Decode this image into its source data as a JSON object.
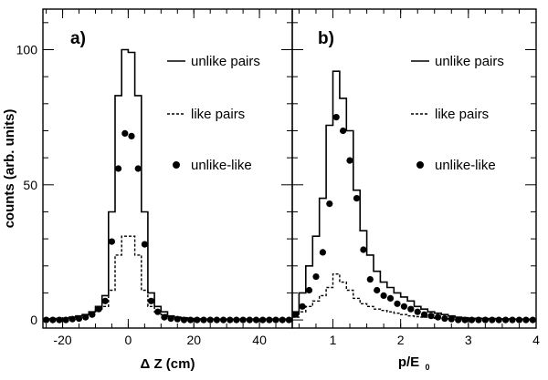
{
  "chart_data": [
    {
      "type": "line",
      "panel_label": "a)",
      "xlabel": "Δ Z (cm)",
      "ylabel": "counts (arb. units)",
      "xlim": [
        -26,
        50
      ],
      "ylim": [
        -3,
        115
      ],
      "x_ticks": [
        "-20",
        "0",
        "20",
        "40"
      ],
      "y_ticks": [
        "0",
        "50",
        "100"
      ],
      "legend": [
        "unlike pairs",
        "like pairs",
        "unlike-like"
      ],
      "legend_placement": "top-right",
      "series": [
        {
          "name": "unlike pairs",
          "style": "solid-histogram",
          "bin_edges": [
            -26,
            -24,
            -22,
            -20,
            -18,
            -16,
            -14,
            -12,
            -10,
            -8,
            -6,
            -4,
            -2,
            0,
            2,
            4,
            6,
            8,
            10,
            12,
            14,
            16,
            18,
            20,
            22,
            24,
            26,
            28,
            30,
            32,
            34,
            36,
            38,
            40,
            42,
            44,
            46,
            48,
            50
          ],
          "values": [
            0.3,
            0.4,
            0.5,
            0.7,
            1,
            1.5,
            2,
            3,
            5,
            9,
            40,
            83,
            100,
            99,
            83,
            40,
            10,
            5,
            3,
            1.5,
            1,
            0.8,
            0.5,
            0.4,
            0.3,
            0.3,
            0.3,
            0.3,
            0.3,
            0.3,
            0.3,
            0.3,
            0.3,
            0.3,
            0.3,
            0.3,
            0.3,
            0.3
          ]
        },
        {
          "name": "like pairs",
          "style": "dashed-histogram",
          "bin_edges": [
            -26,
            -24,
            -22,
            -20,
            -18,
            -16,
            -14,
            -12,
            -10,
            -8,
            -6,
            -4,
            -2,
            0,
            2,
            4,
            6,
            8,
            10,
            12,
            14,
            16,
            18,
            20,
            22,
            24,
            26,
            28,
            30,
            32,
            34,
            36,
            38,
            40,
            42,
            44,
            46,
            48,
            50
          ],
          "values": [
            0.3,
            0.4,
            0.5,
            0.7,
            1,
            1.5,
            2,
            3,
            4,
            5,
            11,
            24,
            31,
            31,
            24,
            11,
            5,
            3,
            2,
            1.2,
            0.8,
            0.6,
            0.4,
            0.3,
            0.3,
            0.3,
            0.3,
            0.3,
            0.3,
            0.3,
            0.3,
            0.3,
            0.3,
            0.3,
            0.3,
            0.3,
            0.3,
            0.3
          ]
        },
        {
          "name": "unlike-like",
          "style": "markers",
          "x": [
            -25,
            -23,
            -21,
            -19,
            -17,
            -15,
            -13,
            -11,
            -9,
            -7,
            -5,
            -3,
            -1,
            1,
            3,
            5,
            7,
            9,
            11,
            13,
            15,
            17,
            19,
            21,
            23,
            25,
            27,
            29,
            31,
            33,
            35,
            37,
            39,
            41,
            43,
            45,
            47,
            49
          ],
          "y": [
            0,
            0,
            0,
            0,
            0.3,
            0.5,
            1,
            2,
            4,
            7,
            29,
            56,
            69,
            68,
            56,
            28,
            7,
            3,
            1,
            0.5,
            0.3,
            0,
            0,
            0,
            0,
            0,
            0,
            0,
            0,
            0,
            0,
            0,
            0,
            0,
            0,
            0,
            0,
            0
          ]
        }
      ]
    },
    {
      "type": "line",
      "panel_label": "b)",
      "xlabel": "p/E",
      "xlabel_subscript": "0",
      "xlim": [
        0.4,
        4
      ],
      "ylim": [
        -3,
        115
      ],
      "x_ticks": [
        "1",
        "2",
        "3",
        "4"
      ],
      "legend": [
        "unlike pairs",
        "like pairs",
        "unlike-like"
      ],
      "legend_placement": "top-right",
      "series": [
        {
          "name": "unlike pairs",
          "style": "solid-histogram",
          "bin_edges": [
            0.4,
            0.5,
            0.6,
            0.7,
            0.8,
            0.9,
            1.0,
            1.1,
            1.2,
            1.3,
            1.4,
            1.5,
            1.6,
            1.7,
            1.8,
            1.9,
            2.0,
            2.1,
            2.2,
            2.3,
            2.4,
            2.5,
            2.6,
            2.7,
            2.8,
            2.9,
            3.0,
            3.2,
            3.4,
            3.6,
            3.8,
            4.0
          ],
          "values": [
            3,
            10,
            20,
            31,
            45,
            72,
            92,
            82,
            70,
            48,
            33,
            24,
            18,
            14,
            12,
            10,
            8.5,
            7,
            5,
            4,
            3,
            2.5,
            2,
            1.5,
            1,
            0.8,
            0.6,
            0.5,
            0.4,
            0.3,
            0.2
          ]
        },
        {
          "name": "like pairs",
          "style": "dashed-histogram",
          "bin_edges": [
            0.4,
            0.5,
            0.6,
            0.7,
            0.8,
            0.9,
            1.0,
            1.1,
            1.2,
            1.3,
            1.4,
            1.5,
            1.6,
            1.7,
            1.8,
            1.9,
            2.0,
            2.1,
            2.2,
            2.3,
            2.4,
            2.5,
            2.6,
            2.7,
            2.8,
            2.9,
            3.0,
            3.2,
            3.4,
            3.6,
            3.8,
            4.0
          ],
          "values": [
            1,
            3,
            5,
            7,
            9,
            12,
            17,
            14,
            11,
            8,
            6,
            5,
            4,
            3.5,
            3,
            2.5,
            2,
            1.5,
            1.2,
            1,
            0.8,
            0.6,
            0.5,
            0.4,
            0.3,
            0.3,
            0.3,
            0.3,
            0.3,
            0.3,
            0.3
          ]
        },
        {
          "name": "unlike-like",
          "style": "markers",
          "x": [
            0.45,
            0.55,
            0.65,
            0.75,
            0.85,
            0.95,
            1.05,
            1.15,
            1.25,
            1.35,
            1.45,
            1.55,
            1.65,
            1.75,
            1.85,
            1.95,
            2.05,
            2.15,
            2.25,
            2.35,
            2.45,
            2.55,
            2.65,
            2.75,
            2.85,
            2.95,
            3.05,
            3.15,
            3.25,
            3.35,
            3.45,
            3.55,
            3.65,
            3.75,
            3.85,
            3.95
          ],
          "y": [
            2,
            5,
            11,
            16,
            25,
            43,
            75,
            70,
            59,
            45,
            26,
            15,
            11,
            9,
            8,
            6,
            5,
            4,
            3,
            2,
            1.5,
            1,
            0.5,
            0.3,
            0,
            0,
            0,
            0,
            0,
            0,
            0,
            0,
            0,
            0,
            0,
            0
          ]
        }
      ]
    }
  ]
}
